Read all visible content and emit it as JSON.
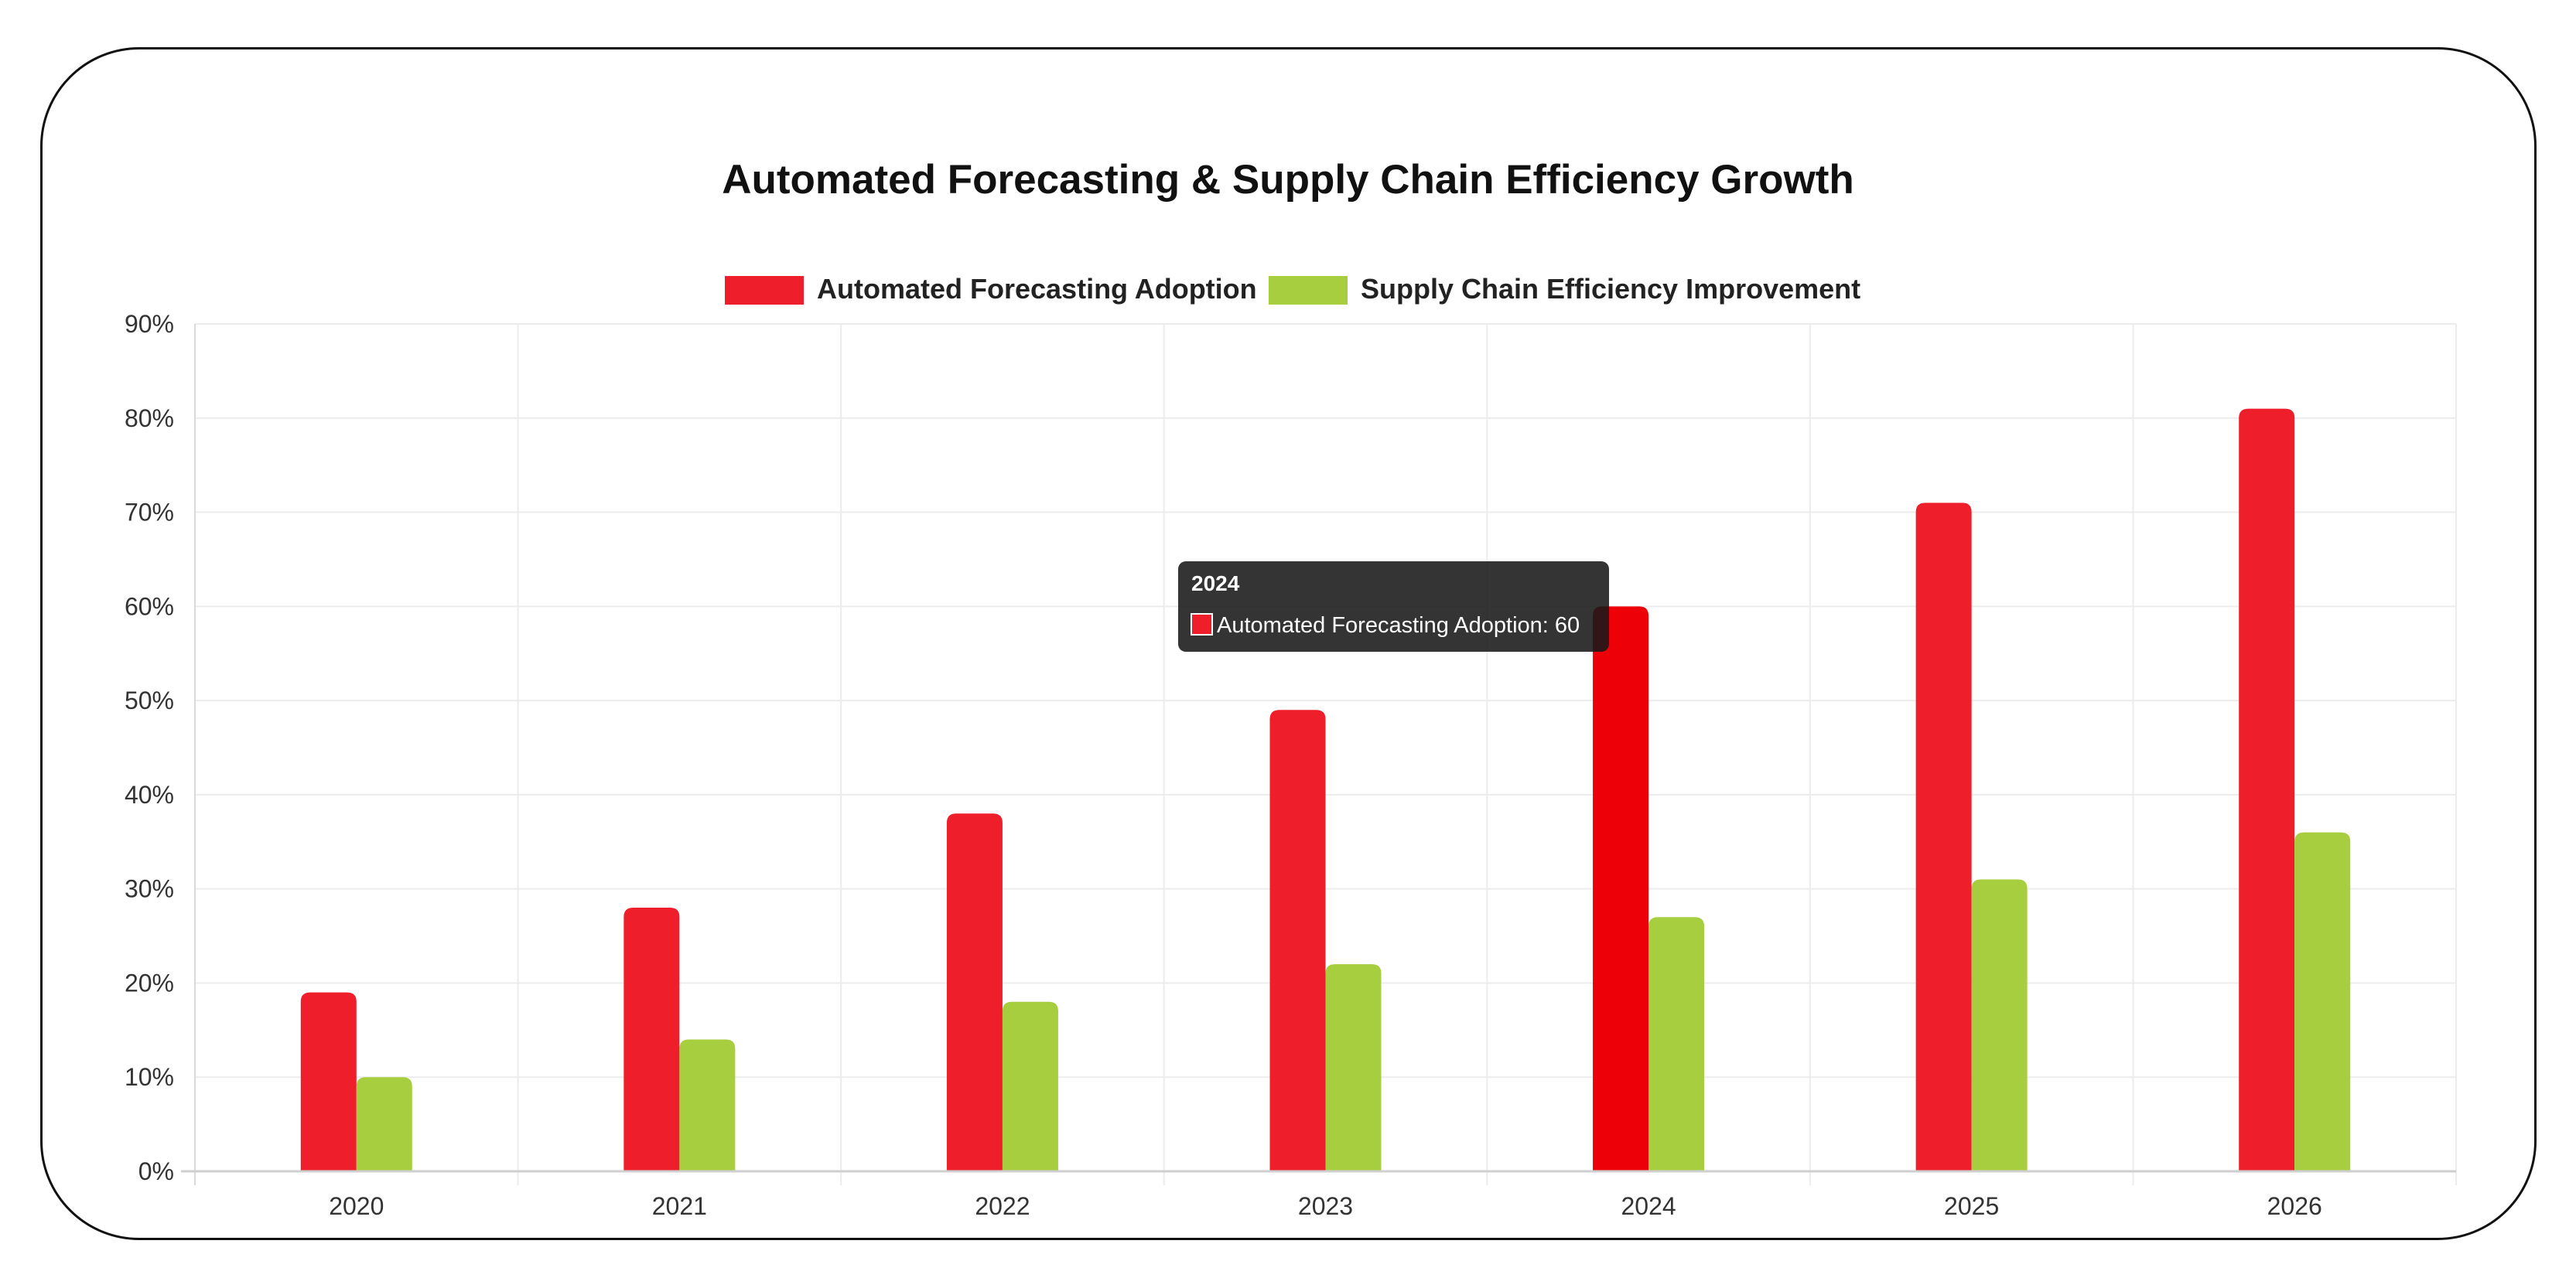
{
  "chart_data": {
    "type": "bar",
    "title": "Automated Forecasting & Supply Chain Efficiency Growth",
    "categories": [
      "2020",
      "2021",
      "2022",
      "2023",
      "2024",
      "2025",
      "2026"
    ],
    "series": [
      {
        "name": "Automated Forecasting Adoption",
        "color": "#ee1f2b",
        "values": [
          19,
          28,
          38,
          49,
          60,
          71,
          81
        ]
      },
      {
        "name": "Supply Chain Efficiency Improvement",
        "color": "#a6ce3e",
        "values": [
          10,
          14,
          18,
          22,
          27,
          31,
          36
        ]
      }
    ],
    "ylim": [
      0,
      90
    ],
    "yticks": [
      "0%",
      "10%",
      "20%",
      "30%",
      "40%",
      "50%",
      "60%",
      "70%",
      "80%",
      "90%"
    ],
    "legend": "top-center",
    "grid": true,
    "highlight_color": "#ee0008",
    "tooltip": {
      "title": "2024",
      "label": "Automated Forecasting Adoption: 60",
      "category_index": 4,
      "series_index": 0
    }
  }
}
